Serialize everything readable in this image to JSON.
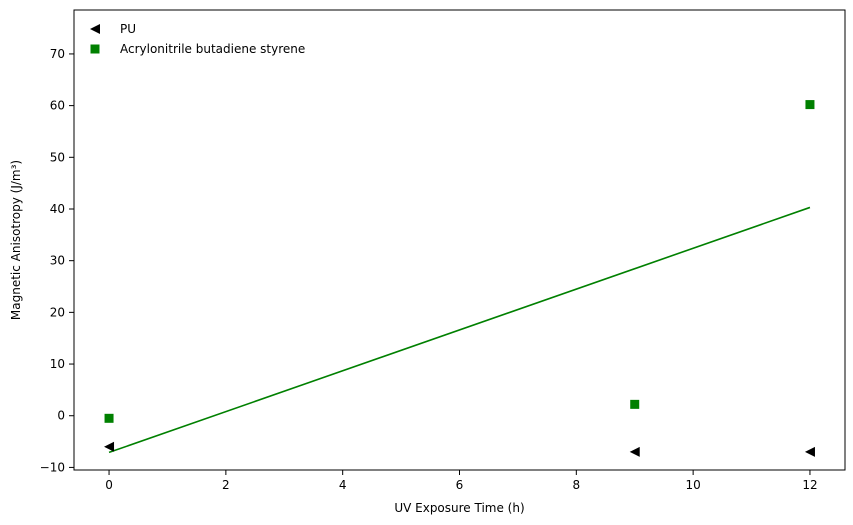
{
  "chart_data": {
    "type": "scatter",
    "xlabel": "UV Exposure Time (h)",
    "ylabel": "Magnetic Anisotropy (J/m³)",
    "xlim": [
      -0.6,
      12.6
    ],
    "ylim": [
      -10.5,
      78.5
    ],
    "xticks": [
      0,
      2,
      4,
      6,
      8,
      10,
      12
    ],
    "yticks": [
      -10,
      0,
      10,
      20,
      30,
      40,
      50,
      60,
      70
    ],
    "grid": false,
    "legend_position": "top-left",
    "series": [
      {
        "name": "PU",
        "marker": "triangle-left",
        "color": "#000000",
        "x": [
          0,
          9,
          12
        ],
        "y": [
          -6,
          -7,
          -7
        ]
      },
      {
        "name": "Acrylonitrile butadiene styrene",
        "marker": "square",
        "color": "#008000",
        "x": [
          0,
          9,
          12
        ],
        "y": [
          -0.5,
          2.2,
          60.2
        ]
      }
    ],
    "trendline": {
      "color": "#008000",
      "x": [
        0,
        12
      ],
      "y": [
        -7.1,
        40.3
      ]
    }
  }
}
